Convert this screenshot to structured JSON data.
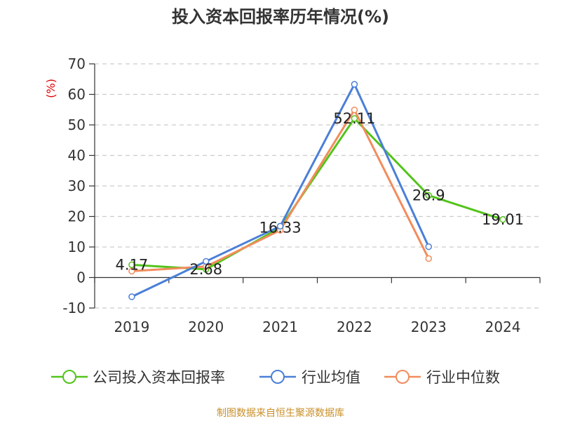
{
  "chart_data": {
    "type": "line",
    "title": "投入资本回报率历年情况(%)",
    "ylabel": "(%)",
    "xlabel": "",
    "categories": [
      "2019",
      "2020",
      "2021",
      "2022",
      "2023",
      "2024"
    ],
    "ylim": [
      -10,
      70
    ],
    "yticks": [
      -10,
      0,
      10,
      20,
      30,
      40,
      50,
      60,
      70
    ],
    "grid": true,
    "legend_position": "bottom",
    "series": [
      {
        "name": "公司投入资本回报率",
        "color": "#52c41a",
        "values": [
          4.17,
          2.68,
          16.33,
          52.11,
          26.9,
          19.01
        ],
        "labels": [
          "4.17",
          "2.68",
          "16.33",
          "52.11",
          "26.9",
          "19.01"
        ]
      },
      {
        "name": "行业均值",
        "color": "#4a7fd8",
        "values": [
          -6.3,
          5.3,
          16.8,
          63.3,
          10.1,
          null
        ]
      },
      {
        "name": "行业中位数",
        "color": "#f28c5c",
        "values": [
          2.1,
          3.6,
          15.5,
          54.9,
          6.2,
          null
        ]
      }
    ]
  },
  "source_note": "制图数据来自恒生聚源数据库"
}
